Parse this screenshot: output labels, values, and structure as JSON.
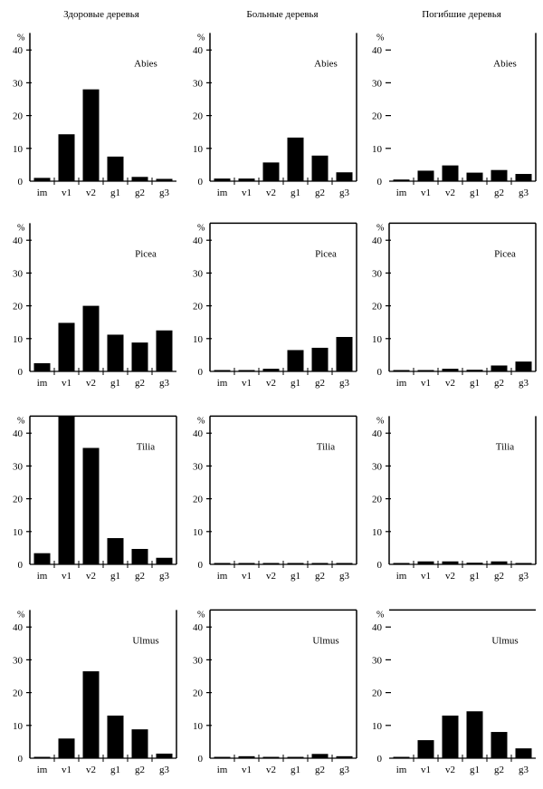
{
  "column_titles": [
    "Здоровые деревья",
    "Больные деревья",
    "Погибшие деревья"
  ],
  "chart_data": {
    "type": "bar",
    "layout": "small-multiples grid, 4 rows (genus) × 3 columns (tree condition)",
    "categories": [
      "im",
      "v1",
      "v2",
      "g1",
      "g2",
      "g3"
    ],
    "ylabel": "%",
    "ylim": [
      0,
      40
    ],
    "yticks": [
      0,
      10,
      20,
      30,
      40
    ],
    "grid": false,
    "bar_color": "#000000",
    "panels": [
      {
        "row": 0,
        "col": 0,
        "genus": "Abies",
        "condition": "Здоровые деревья",
        "values": [
          1.0,
          14.3,
          28.0,
          7.5,
          1.3,
          0.7
        ]
      },
      {
        "row": 0,
        "col": 1,
        "genus": "Abies",
        "condition": "Больные деревья",
        "values": [
          0.8,
          0.8,
          5.7,
          13.3,
          7.8,
          2.7
        ]
      },
      {
        "row": 0,
        "col": 2,
        "genus": "Abies",
        "condition": "Погибшие деревья",
        "values": [
          0.5,
          3.2,
          4.8,
          2.6,
          3.4,
          2.2
        ]
      },
      {
        "row": 1,
        "col": 0,
        "genus": "Picea",
        "condition": "Здоровые деревья",
        "values": [
          2.5,
          14.8,
          20.0,
          11.2,
          8.8,
          12.5
        ]
      },
      {
        "row": 1,
        "col": 1,
        "genus": "Picea",
        "condition": "Больные деревья",
        "values": [
          0.3,
          0.3,
          0.8,
          6.5,
          7.2,
          10.5
        ]
      },
      {
        "row": 1,
        "col": 2,
        "genus": "Picea",
        "condition": "Погибшие деревья",
        "values": [
          0.3,
          0.3,
          0.8,
          0.5,
          1.8,
          3.0
        ]
      },
      {
        "row": 2,
        "col": 0,
        "genus": "Tilia",
        "condition": "Здоровые деревья",
        "values": [
          3.4,
          45.5,
          35.5,
          8.0,
          4.7,
          2.0
        ]
      },
      {
        "row": 2,
        "col": 1,
        "genus": "Tilia",
        "condition": "Больные деревья",
        "values": [
          0.3,
          0.3,
          0.3,
          0.3,
          0.3,
          0.3
        ]
      },
      {
        "row": 2,
        "col": 2,
        "genus": "Tilia",
        "condition": "Погибшие деревья",
        "values": [
          0.3,
          0.9,
          0.9,
          0.5,
          0.9,
          0.3
        ]
      },
      {
        "row": 3,
        "col": 0,
        "genus": "Ulmus",
        "condition": "Здоровые деревья",
        "values": [
          0.2,
          6.0,
          26.5,
          13.0,
          8.8,
          1.4
        ]
      },
      {
        "row": 3,
        "col": 1,
        "genus": "Ulmus",
        "condition": "Больные деревья",
        "values": [
          0.3,
          0.6,
          0.3,
          0.3,
          1.3,
          0.6
        ]
      },
      {
        "row": 3,
        "col": 2,
        "genus": "Ulmus",
        "condition": "Погибшие деревья",
        "values": [
          0.3,
          5.5,
          13.0,
          14.3,
          8.0,
          3.0
        ]
      }
    ]
  }
}
